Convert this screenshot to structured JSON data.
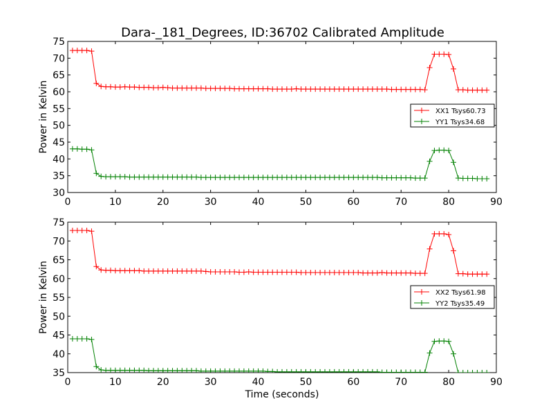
{
  "title": "Dara-_181_Degrees, ID:36702 Calibrated Amplitude",
  "colors": {
    "xx": "#ff0000",
    "yy": "#008000",
    "axes": "#000000",
    "background": "#ffffff"
  },
  "chart_data": [
    {
      "type": "line",
      "title": "Dara-_181_Degrees, ID:36702 Calibrated Amplitude",
      "xlabel": "",
      "ylabel": "Power in Kelvin",
      "xlim": [
        0,
        90
      ],
      "ylim": [
        30,
        75
      ],
      "xticks": [
        0,
        10,
        20,
        30,
        40,
        50,
        60,
        70,
        80,
        90
      ],
      "yticks": [
        30,
        35,
        40,
        45,
        50,
        55,
        60,
        65,
        70,
        75
      ],
      "grid": false,
      "legend_position": "right",
      "x": [
        1,
        2,
        3,
        4,
        5,
        6,
        7,
        8,
        9,
        10,
        11,
        12,
        13,
        14,
        15,
        16,
        17,
        18,
        19,
        20,
        21,
        22,
        23,
        24,
        25,
        26,
        27,
        28,
        29,
        30,
        31,
        32,
        33,
        34,
        35,
        36,
        37,
        38,
        39,
        40,
        41,
        42,
        43,
        44,
        45,
        46,
        47,
        48,
        49,
        50,
        51,
        52,
        53,
        54,
        55,
        56,
        57,
        58,
        59,
        60,
        61,
        62,
        63,
        64,
        65,
        66,
        67,
        68,
        69,
        70,
        71,
        72,
        73,
        74,
        75,
        76,
        77,
        78,
        79,
        80,
        81,
        82,
        83,
        84,
        85,
        86,
        87,
        88
      ],
      "series": [
        {
          "name": "XX1 Tsys60.73",
          "color": "#ff0000",
          "values": [
            72.3,
            72.3,
            72.3,
            72.3,
            72.1,
            62.5,
            61.6,
            61.5,
            61.5,
            61.4,
            61.4,
            61.5,
            61.4,
            61.4,
            61.3,
            61.3,
            61.3,
            61.2,
            61.2,
            61.3,
            61.2,
            61.1,
            61.1,
            61.1,
            61.1,
            61.1,
            61.1,
            61.1,
            61.0,
            61.0,
            61.0,
            61.0,
            61.0,
            61.0,
            60.9,
            60.9,
            60.9,
            60.9,
            60.9,
            60.9,
            60.9,
            60.9,
            60.8,
            60.8,
            60.8,
            60.8,
            60.8,
            60.9,
            60.8,
            60.8,
            60.8,
            60.8,
            60.8,
            60.8,
            60.8,
            60.8,
            60.8,
            60.8,
            60.8,
            60.8,
            60.8,
            60.8,
            60.8,
            60.8,
            60.8,
            60.8,
            60.8,
            60.7,
            60.7,
            60.7,
            60.7,
            60.7,
            60.7,
            60.7,
            60.6,
            67.2,
            71.2,
            71.2,
            71.2,
            71.1,
            66.8,
            60.6,
            60.6,
            60.5,
            60.5,
            60.5,
            60.5,
            60.5
          ]
        },
        {
          "name": "YY1 Tsys34.68",
          "color": "#008000",
          "values": [
            43.0,
            43.0,
            42.9,
            42.9,
            42.7,
            35.7,
            34.8,
            34.7,
            34.7,
            34.7,
            34.7,
            34.7,
            34.6,
            34.6,
            34.6,
            34.6,
            34.6,
            34.6,
            34.6,
            34.6,
            34.6,
            34.6,
            34.6,
            34.6,
            34.6,
            34.6,
            34.6,
            34.5,
            34.5,
            34.5,
            34.5,
            34.5,
            34.5,
            34.5,
            34.5,
            34.5,
            34.5,
            34.5,
            34.5,
            34.5,
            34.5,
            34.5,
            34.5,
            34.5,
            34.5,
            34.5,
            34.5,
            34.5,
            34.5,
            34.5,
            34.5,
            34.5,
            34.5,
            34.5,
            34.5,
            34.5,
            34.5,
            34.5,
            34.5,
            34.5,
            34.5,
            34.5,
            34.5,
            34.5,
            34.5,
            34.4,
            34.4,
            34.4,
            34.4,
            34.4,
            34.4,
            34.4,
            34.3,
            34.3,
            34.3,
            39.3,
            42.5,
            42.6,
            42.6,
            42.5,
            39.0,
            34.3,
            34.2,
            34.2,
            34.2,
            34.1,
            34.1,
            34.1
          ]
        }
      ]
    },
    {
      "type": "line",
      "title": "",
      "xlabel": "Time (seconds)",
      "ylabel": "Power in Kelvin",
      "xlim": [
        0,
        90
      ],
      "ylim": [
        35,
        75
      ],
      "xticks": [
        0,
        10,
        20,
        30,
        40,
        50,
        60,
        70,
        80,
        90
      ],
      "yticks": [
        35,
        40,
        45,
        50,
        55,
        60,
        65,
        70,
        75
      ],
      "grid": false,
      "legend_position": "right",
      "x": [
        1,
        2,
        3,
        4,
        5,
        6,
        7,
        8,
        9,
        10,
        11,
        12,
        13,
        14,
        15,
        16,
        17,
        18,
        19,
        20,
        21,
        22,
        23,
        24,
        25,
        26,
        27,
        28,
        29,
        30,
        31,
        32,
        33,
        34,
        35,
        36,
        37,
        38,
        39,
        40,
        41,
        42,
        43,
        44,
        45,
        46,
        47,
        48,
        49,
        50,
        51,
        52,
        53,
        54,
        55,
        56,
        57,
        58,
        59,
        60,
        61,
        62,
        63,
        64,
        65,
        66,
        67,
        68,
        69,
        70,
        71,
        72,
        73,
        74,
        75,
        76,
        77,
        78,
        79,
        80,
        81,
        82,
        83,
        84,
        85,
        86,
        87,
        88
      ],
      "series": [
        {
          "name": "XX2 Tsys61.98",
          "color": "#ff0000",
          "values": [
            72.8,
            72.8,
            72.8,
            72.8,
            72.6,
            63.2,
            62.3,
            62.2,
            62.2,
            62.1,
            62.1,
            62.1,
            62.1,
            62.1,
            62.1,
            62.0,
            62.0,
            62.0,
            62.0,
            62.0,
            62.0,
            62.0,
            62.0,
            62.0,
            62.0,
            62.0,
            62.0,
            62.0,
            61.9,
            61.8,
            61.8,
            61.8,
            61.8,
            61.8,
            61.8,
            61.7,
            61.7,
            61.8,
            61.7,
            61.7,
            61.7,
            61.7,
            61.7,
            61.7,
            61.7,
            61.7,
            61.7,
            61.7,
            61.6,
            61.6,
            61.6,
            61.6,
            61.6,
            61.6,
            61.6,
            61.6,
            61.6,
            61.6,
            61.6,
            61.6,
            61.6,
            61.5,
            61.5,
            61.5,
            61.5,
            61.6,
            61.5,
            61.5,
            61.5,
            61.5,
            61.5,
            61.5,
            61.4,
            61.4,
            61.4,
            67.9,
            71.9,
            71.9,
            71.9,
            71.7,
            67.4,
            61.3,
            61.3,
            61.2,
            61.2,
            61.2,
            61.2,
            61.2
          ]
        },
        {
          "name": "YY2 Tsys35.49",
          "color": "#008000",
          "values": [
            44.0,
            44.0,
            44.0,
            44.0,
            43.8,
            36.6,
            35.7,
            35.6,
            35.6,
            35.6,
            35.6,
            35.6,
            35.6,
            35.6,
            35.6,
            35.6,
            35.5,
            35.5,
            35.5,
            35.5,
            35.5,
            35.5,
            35.5,
            35.5,
            35.5,
            35.5,
            35.5,
            35.4,
            35.4,
            35.4,
            35.4,
            35.4,
            35.4,
            35.4,
            35.4,
            35.4,
            35.4,
            35.4,
            35.4,
            35.4,
            35.4,
            35.3,
            35.3,
            35.2,
            35.2,
            35.2,
            35.2,
            35.2,
            35.2,
            35.2,
            35.2,
            35.2,
            35.2,
            35.2,
            35.2,
            35.2,
            35.2,
            35.2,
            35.2,
            35.2,
            35.2,
            35.2,
            35.2,
            35.2,
            35.2,
            35.1,
            35.1,
            35.1,
            35.1,
            35.1,
            35.1,
            35.1,
            35.1,
            35.1,
            35.1,
            40.2,
            43.3,
            43.4,
            43.4,
            43.3,
            40.0,
            35.0,
            35.0,
            35.0,
            35.0,
            35.0,
            35.0,
            35.0
          ]
        }
      ]
    }
  ]
}
